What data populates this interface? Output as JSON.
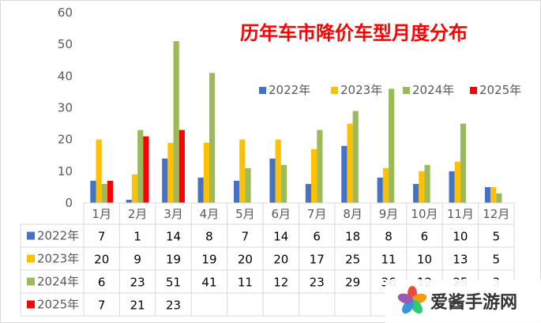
{
  "chart_data": {
    "type": "bar",
    "title": "历年车市降价车型月度分布",
    "categories": [
      "1月",
      "2月",
      "3月",
      "4月",
      "5月",
      "6月",
      "7月",
      "8月",
      "9月",
      "10月",
      "11月",
      "12月"
    ],
    "ylim": [
      0,
      60
    ],
    "yticks": [
      0,
      10,
      20,
      30,
      40,
      50,
      60
    ],
    "grid": false,
    "legend_position": "top-right",
    "series": [
      {
        "name": "2022年",
        "color": "#4472c4",
        "values": [
          7,
          1,
          14,
          8,
          7,
          14,
          6,
          18,
          8,
          6,
          10,
          5
        ]
      },
      {
        "name": "2023年",
        "color": "#ffc000",
        "values": [
          20,
          9,
          19,
          19,
          20,
          20,
          17,
          25,
          11,
          10,
          13,
          5
        ]
      },
      {
        "name": "2024年",
        "color": "#9bbb59",
        "values": [
          6,
          23,
          51,
          41,
          11,
          12,
          23,
          29,
          36,
          12,
          25,
          3
        ]
      },
      {
        "name": "2025年",
        "color": "#ff0000",
        "values": [
          7,
          21,
          23,
          null,
          null,
          null,
          null,
          null,
          null,
          null,
          null,
          null
        ]
      }
    ],
    "table": {
      "rows": [
        [
          "7",
          "1",
          "14",
          "8",
          "7",
          "14",
          "6",
          "18",
          "8",
          "6",
          "10",
          "5"
        ],
        [
          "20",
          "9",
          "19",
          "19",
          "20",
          "20",
          "17",
          "25",
          "11",
          "10",
          "13",
          "5"
        ],
        [
          "6",
          "23",
          "51",
          "41",
          "11",
          "12",
          "23",
          "29",
          "36",
          "12",
          "25",
          "3"
        ],
        [
          "7",
          "21",
          "23",
          "",
          "",
          "",
          "",
          "",
          "",
          "",
          "",
          ""
        ]
      ]
    }
  },
  "watermark": {
    "text": "爱酱手游网",
    "colors": [
      "#e84c3d",
      "#f39c12",
      "#2ecc71",
      "#3498db",
      "#9b59b6"
    ]
  }
}
